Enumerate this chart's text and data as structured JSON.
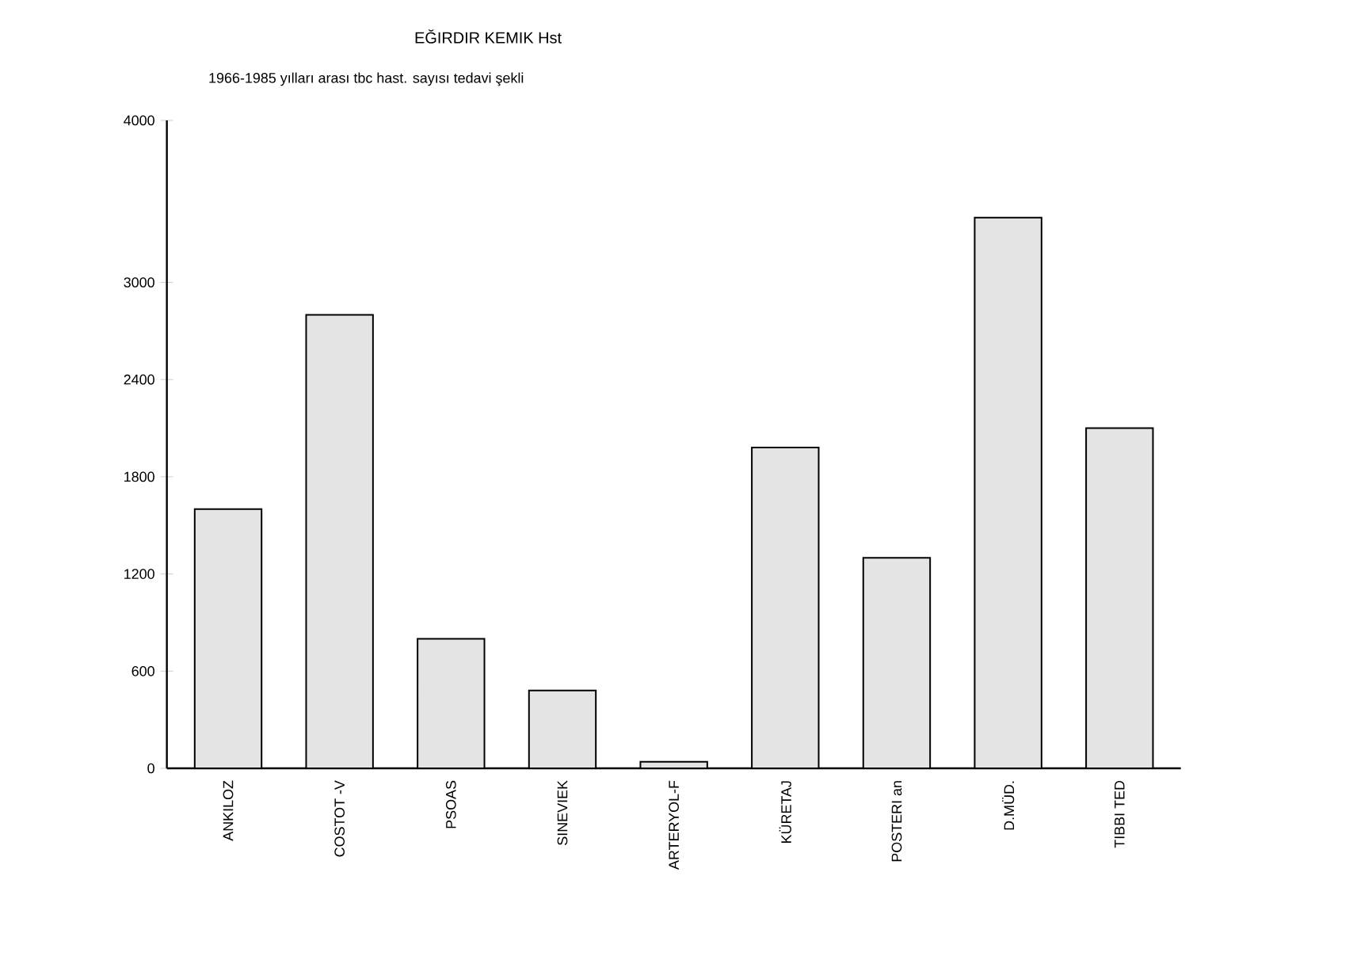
{
  "chart_data": {
    "type": "bar",
    "title": "EĞIRDIR KEMIK Hst",
    "subtitle": "1966-1985 yılları arası tbc hast. sayısı tedavi şekli",
    "categories": [
      "ANKILOZ",
      "COSTOT -V",
      "PSOAS",
      "SINEVIEK",
      "ARTERYOL-F",
      "KÜRETAJ",
      "POSTERI an",
      "D.MÜD.",
      "TIBBI TED"
    ],
    "values": [
      1600,
      2800,
      800,
      480,
      40,
      1980,
      1300,
      3400,
      2100
    ],
    "color": "#e4e4e4",
    "ylim": [
      0,
      4000
    ],
    "yticks": [
      0,
      600,
      1200,
      1800,
      2400,
      3000,
      4000
    ]
  }
}
